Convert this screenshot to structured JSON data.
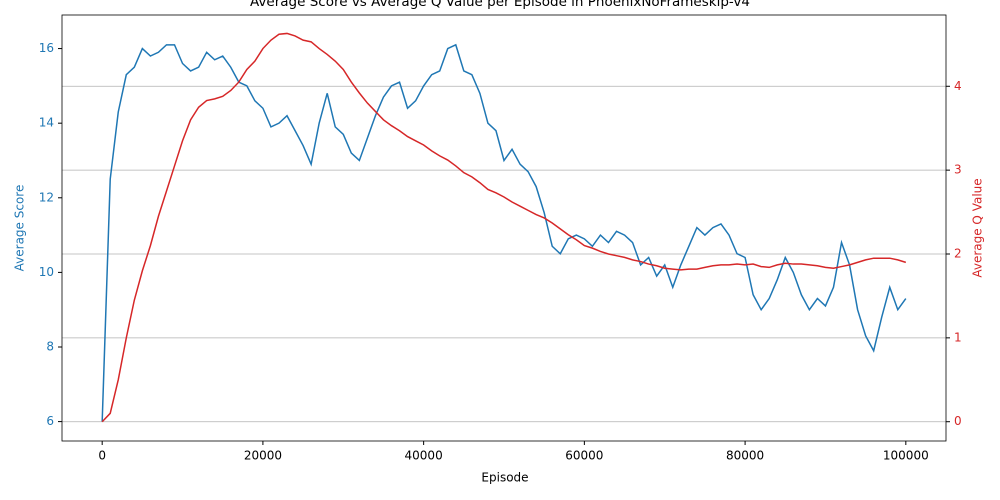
{
  "chart_data": {
    "type": "line",
    "title": "Average Score vs Average Q Value per Episode in PhoenixNoFrameskip-v4",
    "x_label": "Episode",
    "y_label": "Average Score",
    "y2_label": "Average Q Value",
    "x": [
      0,
      1000,
      2000,
      3000,
      4000,
      5000,
      6000,
      7000,
      8000,
      9000,
      10000,
      11000,
      12000,
      13000,
      14000,
      15000,
      16000,
      17000,
      18000,
      19000,
      20000,
      21000,
      22000,
      23000,
      24000,
      25000,
      26000,
      27000,
      28000,
      29000,
      30000,
      31000,
      32000,
      33000,
      34000,
      35000,
      36000,
      37000,
      38000,
      39000,
      40000,
      41000,
      42000,
      43000,
      44000,
      45000,
      46000,
      47000,
      48000,
      49000,
      50000,
      51000,
      52000,
      53000,
      54000,
      55000,
      56000,
      57000,
      58000,
      59000,
      60000,
      61000,
      62000,
      63000,
      64000,
      65000,
      66000,
      67000,
      68000,
      69000,
      70000,
      71000,
      72000,
      73000,
      74000,
      75000,
      76000,
      77000,
      78000,
      79000,
      80000,
      81000,
      82000,
      83000,
      84000,
      85000,
      86000,
      87000,
      88000,
      89000,
      90000,
      91000,
      92000,
      93000,
      94000,
      95000,
      96000,
      97000,
      98000,
      99000,
      100000
    ],
    "series": [
      {
        "name": "Average Score",
        "color": "#1f77b4",
        "axis": "y",
        "values": [
          6.0,
          12.5,
          14.3,
          15.3,
          15.5,
          16.0,
          15.8,
          15.9,
          16.1,
          16.1,
          15.6,
          15.4,
          15.5,
          15.9,
          15.7,
          15.8,
          15.5,
          15.1,
          15.0,
          14.6,
          14.4,
          13.9,
          14.0,
          14.2,
          13.8,
          13.4,
          12.9,
          14.0,
          14.8,
          13.9,
          13.7,
          13.2,
          13.0,
          13.6,
          14.2,
          14.7,
          15.0,
          15.1,
          14.4,
          14.6,
          15.0,
          15.3,
          15.4,
          16.0,
          16.1,
          15.4,
          15.3,
          14.8,
          14.0,
          13.8,
          13.0,
          13.3,
          12.9,
          12.7,
          12.3,
          11.6,
          10.7,
          10.5,
          10.9,
          11.0,
          10.9,
          10.7,
          11.0,
          10.8,
          11.1,
          11.0,
          10.8,
          10.2,
          10.4,
          9.9,
          10.2,
          9.6,
          10.2,
          10.7,
          11.2,
          11.0,
          11.2,
          11.3,
          11.0,
          10.5,
          10.4,
          9.4,
          9.0,
          9.3,
          9.8,
          10.4,
          10.0,
          9.4,
          9.0,
          9.3,
          9.1,
          9.6,
          10.8,
          10.2,
          9.0,
          8.3,
          7.9,
          8.8,
          9.6,
          9.0,
          9.3
        ]
      },
      {
        "name": "Average Q Value",
        "color": "#d62728",
        "axis": "y2",
        "values": [
          0.0,
          0.1,
          0.5,
          1.0,
          1.45,
          1.8,
          2.1,
          2.45,
          2.75,
          3.05,
          3.35,
          3.6,
          3.75,
          3.83,
          3.85,
          3.88,
          3.95,
          4.05,
          4.2,
          4.3,
          4.45,
          4.55,
          4.62,
          4.63,
          4.6,
          4.55,
          4.53,
          4.45,
          4.38,
          4.3,
          4.2,
          4.05,
          3.92,
          3.8,
          3.7,
          3.6,
          3.53,
          3.47,
          3.4,
          3.35,
          3.3,
          3.23,
          3.17,
          3.12,
          3.05,
          2.97,
          2.92,
          2.85,
          2.77,
          2.73,
          2.68,
          2.62,
          2.57,
          2.52,
          2.47,
          2.43,
          2.37,
          2.3,
          2.23,
          2.17,
          2.1,
          2.07,
          2.03,
          2.0,
          1.98,
          1.96,
          1.93,
          1.91,
          1.88,
          1.86,
          1.83,
          1.82,
          1.81,
          1.82,
          1.82,
          1.84,
          1.86,
          1.87,
          1.87,
          1.88,
          1.87,
          1.88,
          1.85,
          1.84,
          1.87,
          1.89,
          1.88,
          1.88,
          1.87,
          1.86,
          1.84,
          1.83,
          1.85,
          1.87,
          1.9,
          1.93,
          1.95,
          1.95,
          1.95,
          1.93,
          1.9
        ]
      }
    ],
    "xlim": [
      -5000,
      105000
    ],
    "xticks": [
      0,
      20000,
      40000,
      60000,
      80000,
      100000
    ],
    "ylim": [
      5.48,
      16.9
    ],
    "yticks": [
      6,
      8,
      10,
      12,
      14,
      16
    ],
    "y2lim": [
      -0.23,
      4.85
    ],
    "y2ticks": [
      0,
      1,
      2,
      3,
      4
    ],
    "grid": "y2"
  }
}
